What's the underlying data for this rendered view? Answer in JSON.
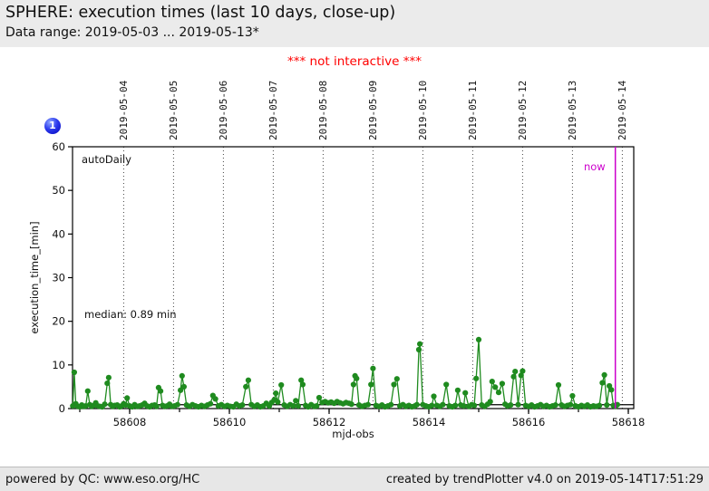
{
  "header": {
    "title": "SPHERE: execution times (last 10 days, close-up)",
    "subtitle": "Data range: 2019-05-03 ... 2019-05-13*"
  },
  "notice": "*** not interactive ***",
  "badge": {
    "label": "1",
    "color": "#2d3bee"
  },
  "footer": {
    "left": "powered by QC: www.eso.org/HC",
    "right": "created by trendPlotter v4.0 on 2019-05-14T17:51:29"
  },
  "chart_data": {
    "type": "line",
    "title": "SPHERE: execution times (last 10 days, close-up)",
    "xlabel": "mjd-obs",
    "ylabel": "execution_time_[min]",
    "xlim": [
      58606.85,
      58618.11
    ],
    "ylim": [
      0,
      60
    ],
    "y_ticks": [
      0,
      10,
      20,
      30,
      40,
      50,
      60
    ],
    "x_ticks_minor": [
      58607,
      58608,
      58609,
      58610,
      58611,
      58612,
      58613,
      58614,
      58615,
      58616,
      58617,
      58618
    ],
    "x_ticks_labeled": [
      58608,
      58610,
      58612,
      58614,
      58616,
      58618
    ],
    "top_axis_dates": [
      "2019-05-04",
      "2019-05-05",
      "2019-05-06",
      "2019-05-07",
      "2019-05-08",
      "2019-05-09",
      "2019-05-10",
      "2019-05-11",
      "2019-05-12",
      "2019-05-13",
      "2019-05-14"
    ],
    "grid": {
      "vertical_dotted_at_top_dates": true,
      "horizontal": false
    },
    "legend_position": "none",
    "annotations": {
      "series_label": "autoDaily",
      "median_label": "median: 0.89 min",
      "median_value": 0.89,
      "now_label": "now",
      "now_mjd": 58617.74,
      "now_color": "#cc00cc"
    },
    "series": [
      {
        "name": "autoDaily",
        "color": "#1f8b1f",
        "points": [
          [
            58606.86,
            0.6
          ],
          [
            58606.89,
            8.3
          ],
          [
            58606.92,
            1.1
          ],
          [
            58606.96,
            0.5
          ],
          [
            58607.0,
            0.4
          ],
          [
            58607.04,
            0.8
          ],
          [
            58607.08,
            0.5
          ],
          [
            58607.12,
            0.6
          ],
          [
            58607.16,
            4.0
          ],
          [
            58607.2,
            0.9
          ],
          [
            58607.24,
            0.5
          ],
          [
            58607.28,
            0.7
          ],
          [
            58607.32,
            1.3
          ],
          [
            58607.36,
            0.6
          ],
          [
            58607.4,
            0.5
          ],
          [
            58607.45,
            0.4
          ],
          [
            58607.5,
            1.0
          ],
          [
            58607.55,
            5.8
          ],
          [
            58607.58,
            7.1
          ],
          [
            58607.62,
            0.9
          ],
          [
            58607.66,
            0.5
          ],
          [
            58607.7,
            0.7
          ],
          [
            58607.75,
            0.8
          ],
          [
            58607.8,
            0.4
          ],
          [
            58607.84,
            0.6
          ],
          [
            58607.88,
            1.1
          ],
          [
            58607.92,
            0.8
          ],
          [
            58607.95,
            2.4
          ],
          [
            58608.0,
            0.6
          ],
          [
            58608.05,
            0.4
          ],
          [
            58608.1,
            0.9
          ],
          [
            58608.15,
            0.5
          ],
          [
            58608.2,
            0.6
          ],
          [
            58608.25,
            0.8
          ],
          [
            58608.3,
            1.2
          ],
          [
            58608.35,
            0.6
          ],
          [
            58608.4,
            0.4
          ],
          [
            58608.45,
            0.7
          ],
          [
            58608.5,
            0.8
          ],
          [
            58608.54,
            0.5
          ],
          [
            58608.58,
            4.8
          ],
          [
            58608.62,
            4.0
          ],
          [
            58608.66,
            0.7
          ],
          [
            58608.7,
            0.5
          ],
          [
            58608.75,
            0.6
          ],
          [
            58608.8,
            1.0
          ],
          [
            58608.85,
            0.5
          ],
          [
            58608.9,
            0.6
          ],
          [
            58608.96,
            0.9
          ],
          [
            58609.02,
            4.2
          ],
          [
            58609.05,
            7.5
          ],
          [
            58609.09,
            5.0
          ],
          [
            58609.14,
            0.8
          ],
          [
            58609.2,
            0.5
          ],
          [
            58609.26,
            0.9
          ],
          [
            58609.32,
            0.6
          ],
          [
            58609.38,
            0.4
          ],
          [
            58609.44,
            0.7
          ],
          [
            58609.5,
            0.5
          ],
          [
            58609.56,
            0.8
          ],
          [
            58609.62,
            1.1
          ],
          [
            58609.67,
            3.0
          ],
          [
            58609.72,
            2.2
          ],
          [
            58609.78,
            0.6
          ],
          [
            58609.84,
            0.9
          ],
          [
            58609.9,
            0.5
          ],
          [
            58609.96,
            0.7
          ],
          [
            58610.02,
            0.5
          ],
          [
            58610.08,
            0.4
          ],
          [
            58610.14,
            1.0
          ],
          [
            58610.2,
            0.6
          ],
          [
            58610.26,
            0.8
          ],
          [
            58610.33,
            5.0
          ],
          [
            58610.38,
            6.5
          ],
          [
            58610.44,
            0.9
          ],
          [
            58610.5,
            0.5
          ],
          [
            58610.56,
            0.8
          ],
          [
            58610.62,
            0.4
          ],
          [
            58610.68,
            0.6
          ],
          [
            58610.74,
            1.2
          ],
          [
            58610.8,
            0.6
          ],
          [
            58610.85,
            1.4
          ],
          [
            58610.9,
            2.0
          ],
          [
            58610.93,
            3.5
          ],
          [
            58610.97,
            1.5
          ],
          [
            58611.04,
            5.4
          ],
          [
            58611.1,
            0.8
          ],
          [
            58611.16,
            0.5
          ],
          [
            58611.22,
            0.9
          ],
          [
            58611.28,
            0.6
          ],
          [
            58611.33,
            1.8
          ],
          [
            58611.38,
            0.6
          ],
          [
            58611.44,
            6.5
          ],
          [
            58611.47,
            5.5
          ],
          [
            58611.53,
            0.7
          ],
          [
            58611.58,
            0.4
          ],
          [
            58611.64,
            0.9
          ],
          [
            58611.7,
            0.5
          ],
          [
            58611.75,
            0.6
          ],
          [
            58611.8,
            2.5
          ],
          [
            58611.86,
            1.4
          ],
          [
            58611.92,
            1.6
          ],
          [
            58611.98,
            1.3
          ],
          [
            58612.04,
            1.5
          ],
          [
            58612.1,
            1.2
          ],
          [
            58612.16,
            1.6
          ],
          [
            58612.22,
            1.3
          ],
          [
            58612.28,
            1.1
          ],
          [
            58612.34,
            1.4
          ],
          [
            58612.4,
            1.2
          ],
          [
            58612.45,
            1.0
          ],
          [
            58612.49,
            5.5
          ],
          [
            58612.52,
            7.5
          ],
          [
            58612.55,
            6.9
          ],
          [
            58612.6,
            0.8
          ],
          [
            58612.66,
            0.5
          ],
          [
            58612.72,
            0.7
          ],
          [
            58612.78,
            0.9
          ],
          [
            58612.84,
            5.5
          ],
          [
            58612.88,
            9.2
          ],
          [
            58612.94,
            0.7
          ],
          [
            58613.0,
            0.5
          ],
          [
            58613.06,
            0.8
          ],
          [
            58613.12,
            0.4
          ],
          [
            58613.18,
            0.6
          ],
          [
            58613.24,
            0.9
          ],
          [
            58613.3,
            5.5
          ],
          [
            58613.36,
            6.8
          ],
          [
            58613.42,
            0.6
          ],
          [
            58613.48,
            0.9
          ],
          [
            58613.54,
            0.5
          ],
          [
            58613.6,
            0.7
          ],
          [
            58613.66,
            0.4
          ],
          [
            58613.72,
            0.6
          ],
          [
            58613.76,
            0.9
          ],
          [
            58613.8,
            13.5
          ],
          [
            58613.82,
            14.8
          ],
          [
            58613.88,
            0.9
          ],
          [
            58613.94,
            0.6
          ],
          [
            58614.0,
            0.4
          ],
          [
            58614.06,
            0.7
          ],
          [
            58614.1,
            2.8
          ],
          [
            58614.16,
            0.7
          ],
          [
            58614.22,
            0.5
          ],
          [
            58614.28,
            0.9
          ],
          [
            58614.35,
            5.5
          ],
          [
            58614.41,
            0.6
          ],
          [
            58614.47,
            0.4
          ],
          [
            58614.53,
            0.7
          ],
          [
            58614.58,
            4.2
          ],
          [
            58614.64,
            0.8
          ],
          [
            58614.7,
            0.6
          ],
          [
            58614.73,
            3.6
          ],
          [
            58614.8,
            0.5
          ],
          [
            58614.86,
            0.9
          ],
          [
            58614.91,
            0.7
          ],
          [
            58614.95,
            6.9
          ],
          [
            58615.0,
            15.8
          ],
          [
            58615.06,
            0.8
          ],
          [
            58615.12,
            0.5
          ],
          [
            58615.18,
            1.0
          ],
          [
            58615.23,
            1.6
          ],
          [
            58615.27,
            6.2
          ],
          [
            58615.33,
            4.9
          ],
          [
            58615.4,
            3.7
          ],
          [
            58615.47,
            5.7
          ],
          [
            58615.53,
            1.0
          ],
          [
            58615.58,
            0.6
          ],
          [
            58615.64,
            0.8
          ],
          [
            58615.7,
            7.3
          ],
          [
            58615.73,
            8.5
          ],
          [
            58615.79,
            0.9
          ],
          [
            58615.85,
            7.6
          ],
          [
            58615.88,
            8.6
          ],
          [
            58615.94,
            0.7
          ],
          [
            58616.0,
            0.5
          ],
          [
            58616.06,
            0.8
          ],
          [
            58616.12,
            0.4
          ],
          [
            58616.18,
            0.6
          ],
          [
            58616.24,
            0.9
          ],
          [
            58616.3,
            0.5
          ],
          [
            58616.36,
            0.7
          ],
          [
            58616.42,
            0.4
          ],
          [
            58616.48,
            0.6
          ],
          [
            58616.54,
            0.8
          ],
          [
            58616.6,
            5.4
          ],
          [
            58616.66,
            0.8
          ],
          [
            58616.72,
            0.5
          ],
          [
            58616.78,
            0.7
          ],
          [
            58616.84,
            0.9
          ],
          [
            58616.88,
            2.9
          ],
          [
            58616.94,
            0.6
          ],
          [
            58617.0,
            0.4
          ],
          [
            58617.06,
            0.7
          ],
          [
            58617.12,
            0.5
          ],
          [
            58617.18,
            0.8
          ],
          [
            58617.24,
            0.4
          ],
          [
            58617.3,
            0.6
          ],
          [
            58617.36,
            0.5
          ],
          [
            58617.42,
            0.7
          ],
          [
            58617.48,
            5.9
          ],
          [
            58617.52,
            7.7
          ],
          [
            58617.57,
            0.8
          ],
          [
            58617.62,
            5.2
          ],
          [
            58617.66,
            4.3
          ],
          [
            58617.7,
            0.7
          ],
          [
            58617.74,
            0.5
          ],
          [
            58617.78,
            0.9
          ]
        ]
      }
    ]
  }
}
